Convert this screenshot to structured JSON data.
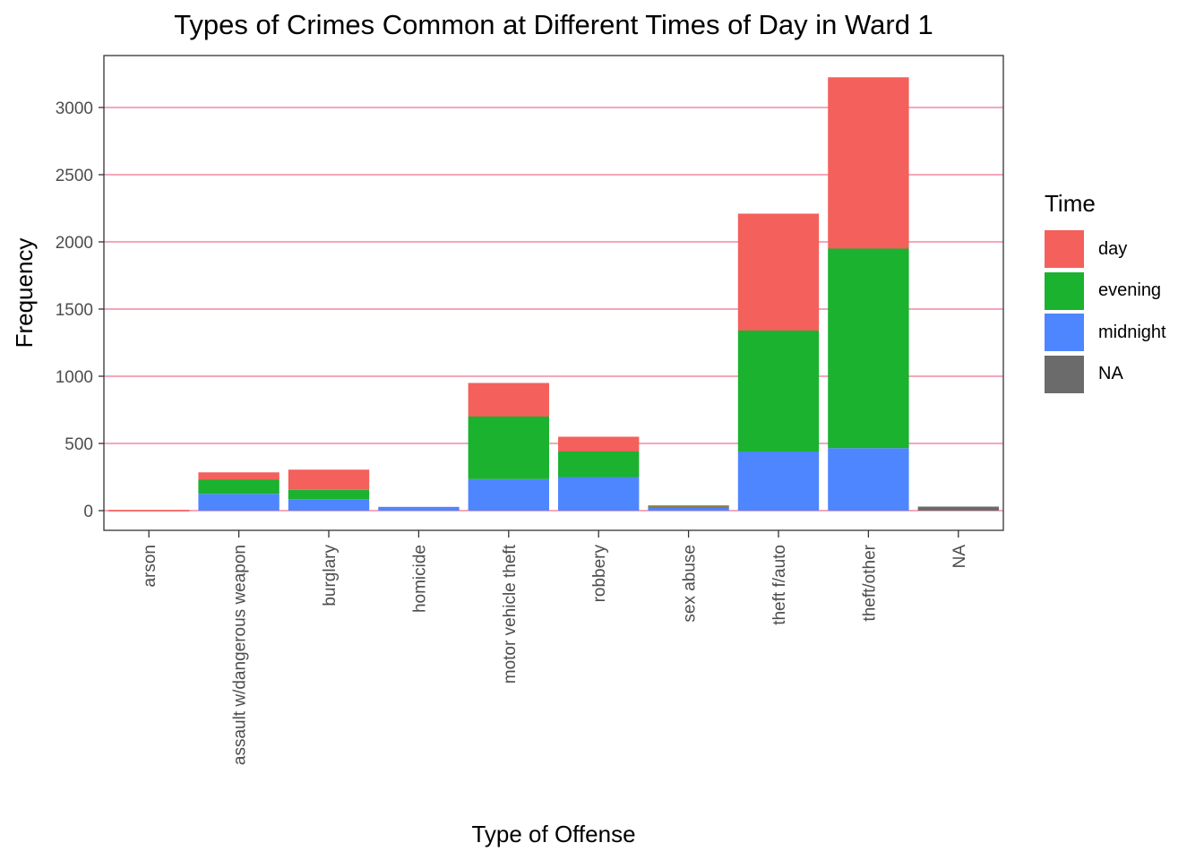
{
  "chart_data": {
    "type": "bar",
    "stacked": true,
    "title": "Types of Crimes Common at Different Times of Day in Ward 1",
    "xlabel": "Type of Offense",
    "ylabel": "Frequency",
    "categories": [
      "arson",
      "assault w/dangerous weapon",
      "burglary",
      "homicide",
      "motor vehicle theft",
      "robbery",
      "sex abuse",
      "theft f/auto",
      "theft/other",
      "NA"
    ],
    "series": [
      {
        "name": "midnight",
        "color": "#4E86FF",
        "values": [
          0,
          125,
          85,
          28,
          235,
          250,
          20,
          440,
          465,
          0
        ]
      },
      {
        "name": "evening",
        "color": "#1AB22E",
        "values": [
          0,
          105,
          70,
          0,
          465,
          190,
          10,
          900,
          1485,
          0
        ]
      },
      {
        "name": "day",
        "color": "#F4605B",
        "values": [
          5,
          55,
          150,
          0,
          250,
          110,
          10,
          870,
          1275,
          0
        ]
      },
      {
        "name": "NA",
        "color": "#6B6B6B",
        "values": [
          0,
          0,
          0,
          0,
          0,
          0,
          0,
          0,
          0,
          30
        ]
      }
    ],
    "ylim": [
      -150,
      3350
    ],
    "yticks": [
      0,
      500,
      1000,
      1500,
      2000,
      2500,
      3000
    ],
    "grid": "horizontal major gridlines in pink",
    "legend": {
      "title": "Time",
      "position": "right",
      "order": [
        "day",
        "evening",
        "midnight",
        "NA"
      ]
    },
    "colors": {
      "grid": "#F4A7B9",
      "panel_border": "#333333",
      "axis_text": "#4D4D4D"
    }
  }
}
